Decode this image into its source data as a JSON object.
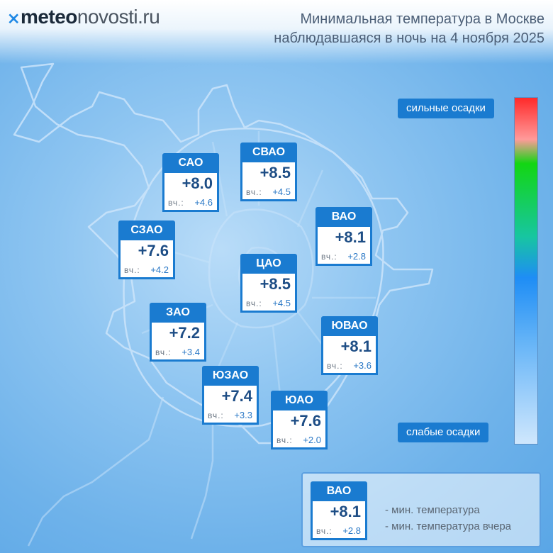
{
  "header": {
    "logo_a": "meteo",
    "logo_b": "novosti.ru",
    "title_line1": "Минимальная температура в Москве",
    "title_line2": "наблюдавшаяся в ночь на 4 ноября 2025"
  },
  "yesterday_label": "вч.:",
  "districts": [
    {
      "name": "САО",
      "temp": "+8.0",
      "yesterday": "+4.6"
    },
    {
      "name": "СВАО",
      "temp": "+8.5",
      "yesterday": "+4.5"
    },
    {
      "name": "ВАО",
      "temp": "+8.1",
      "yesterday": "+2.8"
    },
    {
      "name": "СЗАО",
      "temp": "+7.6",
      "yesterday": "+4.2"
    },
    {
      "name": "ЦАО",
      "temp": "+8.5",
      "yesterday": "+4.5"
    },
    {
      "name": "ЗАО",
      "temp": "+7.2",
      "yesterday": "+3.4"
    },
    {
      "name": "ЮВАО",
      "temp": "+8.1",
      "yesterday": "+3.6"
    },
    {
      "name": "ЮЗАО",
      "temp": "+7.4",
      "yesterday": "+3.3"
    },
    {
      "name": "ЮАО",
      "temp": "+7.6",
      "yesterday": "+2.0"
    }
  ],
  "scale": {
    "top_label": "сильные осадки",
    "bottom_label": "слабые осадки",
    "colors": [
      "#ff2a2a",
      "#13d613",
      "#1e8df5",
      "#cfe7fd"
    ]
  },
  "legend": {
    "district": "ВАО",
    "temp": "+8.1",
    "yesterday": "+2.8",
    "temp_desc": "- мин. температура",
    "yesterday_desc": "- мин. температура вчера"
  }
}
